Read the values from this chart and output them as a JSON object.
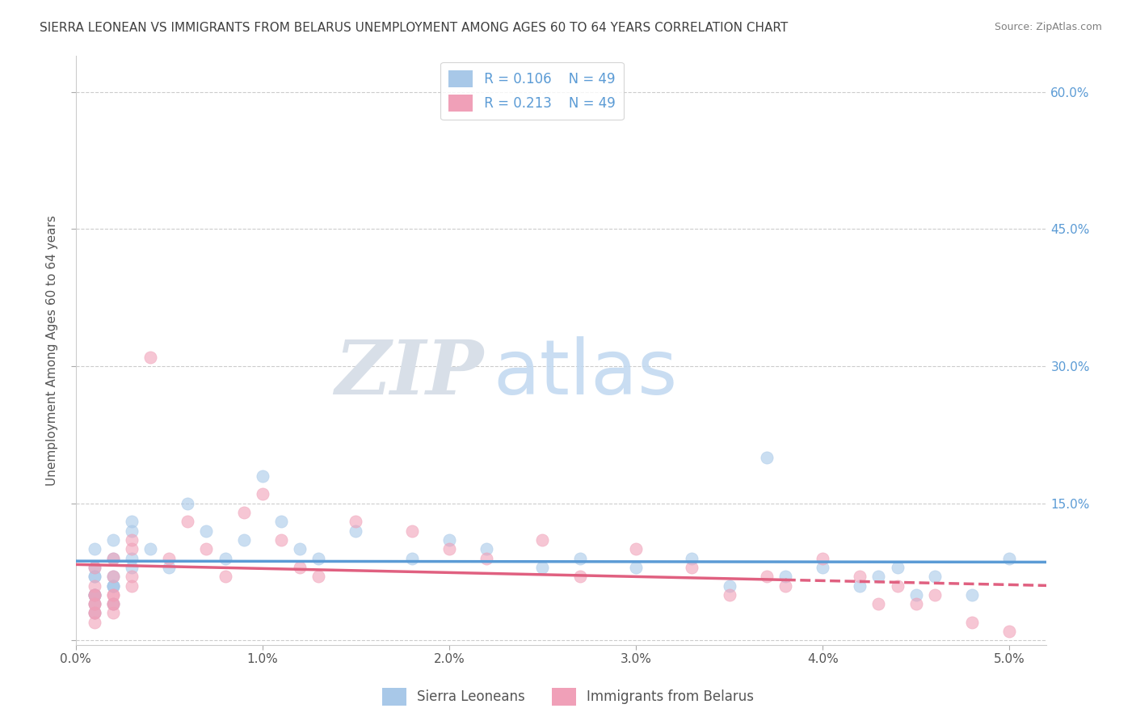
{
  "title": "SIERRA LEONEAN VS IMMIGRANTS FROM BELARUS UNEMPLOYMENT AMONG AGES 60 TO 64 YEARS CORRELATION CHART",
  "source": "Source: ZipAtlas.com",
  "ylabel": "Unemployment Among Ages 60 to 64 years",
  "legend_labels": [
    "Sierra Leoneans",
    "Immigrants from Belarus"
  ],
  "legend_R": [
    0.106,
    0.213
  ],
  "legend_N": [
    49,
    49
  ],
  "color_blue": "#a8c8e8",
  "color_pink": "#f0a0b8",
  "line_color_blue": "#5b9bd5",
  "line_color_pink": "#e06080",
  "watermark_zip": "ZIP",
  "watermark_atlas": "atlas",
  "xlim": [
    0.0,
    0.052
  ],
  "ylim": [
    -0.005,
    0.64
  ],
  "yticks": [
    0.0,
    0.15,
    0.3,
    0.45,
    0.6
  ],
  "xticks": [
    0.0,
    0.01,
    0.02,
    0.03,
    0.04,
    0.05
  ],
  "xtick_labels": [
    "0.0%",
    "1.0%",
    "2.0%",
    "3.0%",
    "4.0%",
    "5.0%"
  ],
  "ytick_labels_right": [
    "",
    "15.0%",
    "30.0%",
    "45.0%",
    "60.0%"
  ],
  "title_fontsize": 11,
  "axis_label_fontsize": 11,
  "tick_fontsize": 11,
  "legend_fontsize": 12,
  "watermark_fontsize_zip": 68,
  "watermark_fontsize_atlas": 68,
  "background_color": "#ffffff",
  "grid_color": "#cccccc",
  "tick_color_right": "#5b9bd5",
  "tick_color_bottom": "#555555"
}
